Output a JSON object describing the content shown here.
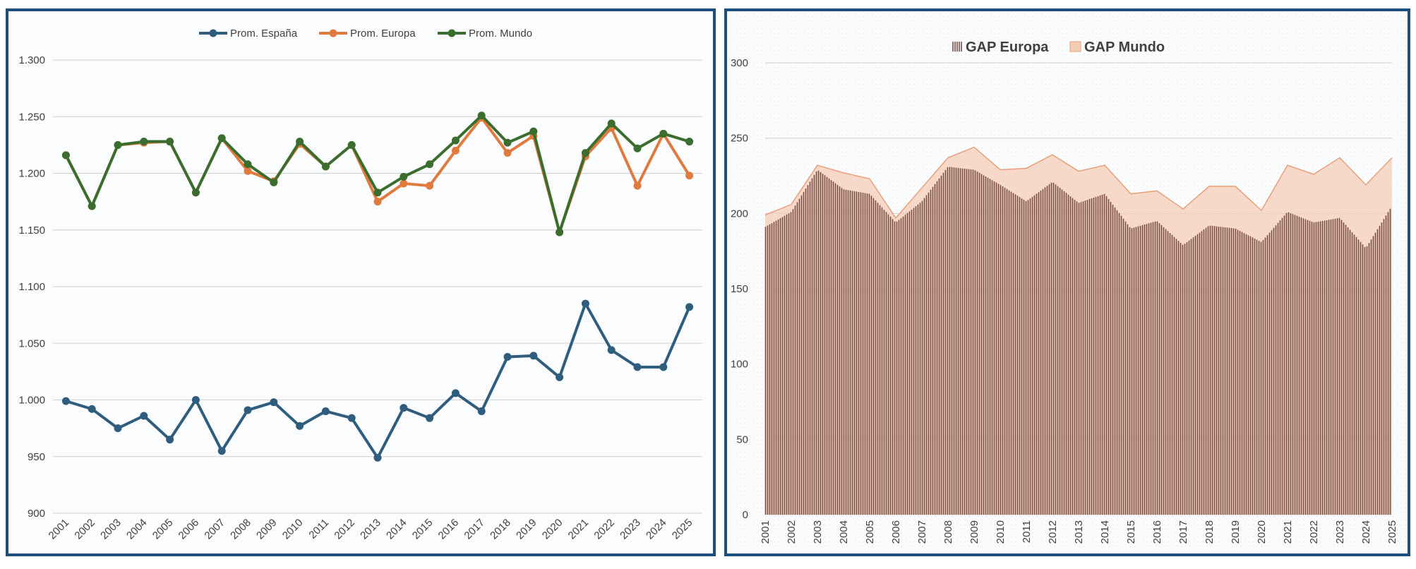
{
  "colors": {
    "spain": "#2e5d7e",
    "europe": "#e07b3f",
    "world": "#3b6e2e",
    "gap_europe": "#7a4a45",
    "gap_mundo_fill": "#f4cdb5",
    "gap_mundo_line": "#e9a07a",
    "grid": "#d0d0d0",
    "border": "#1f4e79"
  },
  "chart_data": [
    {
      "type": "line",
      "title": "",
      "xlabel": "",
      "ylabel": "",
      "ylim": [
        900,
        1300
      ],
      "yticks": [
        900,
        950,
        1000,
        1050,
        1100,
        1150,
        1200,
        1250,
        1300
      ],
      "ytick_labels": [
        "900",
        "950",
        "1.000",
        "1.050",
        "1.100",
        "1.150",
        "1.200",
        "1.250",
        "1.300"
      ],
      "categories": [
        "2001",
        "2002",
        "2003",
        "2004",
        "2005",
        "2006",
        "2007",
        "2008",
        "2009",
        "2010",
        "2011",
        "2012",
        "2013",
        "2014",
        "2015",
        "2016",
        "2017",
        "2018",
        "2019",
        "2020",
        "2021",
        "2022",
        "2023",
        "2024",
        "2025"
      ],
      "legend_position": "top-center",
      "series": [
        {
          "name": "Prom. España",
          "values": [
            999,
            992,
            975,
            986,
            965,
            1000,
            955,
            991,
            998,
            977,
            990,
            984,
            949,
            993,
            984,
            1006,
            990,
            1038,
            1039,
            1020,
            1085,
            1044,
            1029,
            1029,
            1082
          ]
        },
        {
          "name": "Prom. Europa",
          "values": [
            1216,
            1171,
            1225,
            1227,
            1228,
            1183,
            1231,
            1202,
            1193,
            1226,
            1206,
            1225,
            1175,
            1191,
            1189,
            1220,
            1249,
            1218,
            1233,
            1148,
            1215,
            1240,
            1189,
            1235,
            1198
          ]
        },
        {
          "name": "Prom. Mundo",
          "values": [
            1216,
            1171,
            1225,
            1228,
            1228,
            1183,
            1231,
            1208,
            1192,
            1228,
            1206,
            1225,
            1183,
            1197,
            1208,
            1229,
            1251,
            1227,
            1237,
            1148,
            1218,
            1244,
            1222,
            1235,
            1228
          ]
        }
      ]
    },
    {
      "type": "area",
      "title": "",
      "xlabel": "",
      "ylabel": "",
      "ylim": [
        0,
        300
      ],
      "yticks": [
        0,
        50,
        100,
        150,
        200,
        250,
        300
      ],
      "ytick_labels": [
        "0",
        "50",
        "100",
        "150",
        "200",
        "250",
        "300"
      ],
      "categories": [
        "2001",
        "2002",
        "2003",
        "2004",
        "2005",
        "2006",
        "2007",
        "2008",
        "2009",
        "2010",
        "2011",
        "2012",
        "2013",
        "2014",
        "2015",
        "2016",
        "2017",
        "2018",
        "2019",
        "2020",
        "2021",
        "2022",
        "2023",
        "2024",
        "2025"
      ],
      "legend_position": "top-center",
      "series": [
        {
          "name": "GAP Europa",
          "values": [
            191,
            201,
            229,
            216,
            213,
            194,
            208,
            231,
            229,
            219,
            208,
            221,
            207,
            213,
            190,
            195,
            179,
            192,
            190,
            181,
            201,
            194,
            197,
            177,
            205
          ]
        },
        {
          "name": "GAP Mundo",
          "values": [
            199,
            206,
            232,
            227,
            223,
            197,
            217,
            237,
            244,
            229,
            230,
            239,
            228,
            232,
            213,
            215,
            203,
            218,
            218,
            202,
            232,
            226,
            237,
            219,
            237
          ]
        }
      ]
    }
  ]
}
